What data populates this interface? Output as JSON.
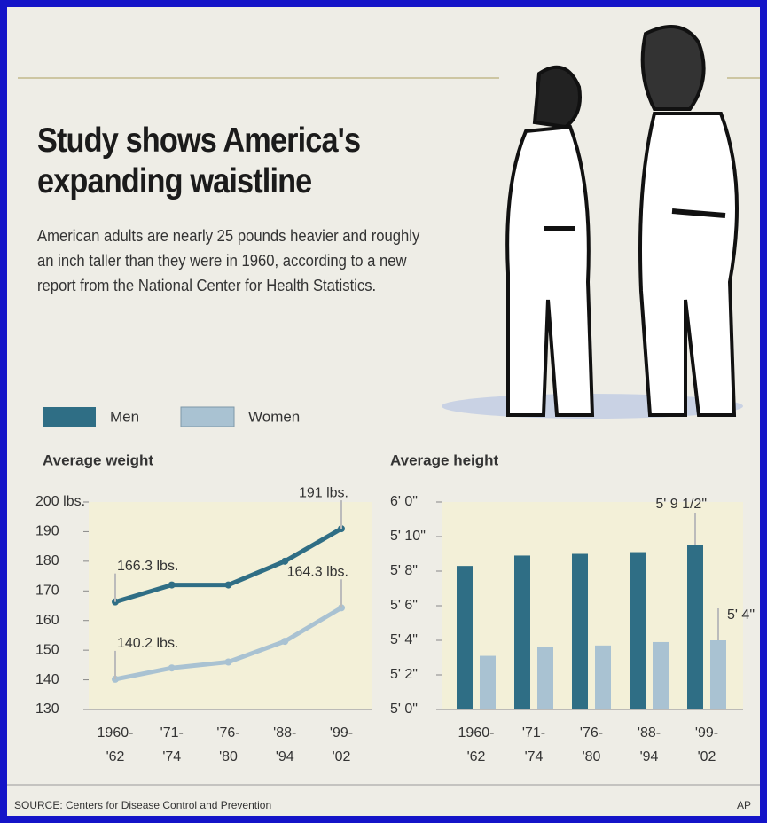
{
  "title": "Study shows America's expanding waistline",
  "description": "American adults are nearly 25 pounds heavier and roughly an inch taller than they were in 1960, according to a new report from the National Center for Health Statistics.",
  "source": "SOURCE: Centers for Disease Control and Prevention",
  "credit": "AP",
  "chart_data": [
    {
      "type": "line",
      "title": "Average weight",
      "categories": [
        "1960-'62",
        "'71-'74",
        "'76-'80",
        "'88-'94",
        "'99-'02"
      ],
      "series": [
        {
          "name": "Men",
          "color": "#2f6e85",
          "values": [
            166.3,
            172,
            172,
            180,
            191
          ],
          "value_labels": [
            "166.3 lbs.",
            null,
            null,
            null,
            "191 lbs."
          ]
        },
        {
          "name": "Women",
          "color": "#a9c2d2",
          "values": [
            140.2,
            144,
            146,
            153,
            164.3
          ],
          "value_labels": [
            "140.2 lbs.",
            null,
            null,
            null,
            "164.3 lbs."
          ]
        }
      ],
      "ylim": [
        130,
        200
      ],
      "yticks": [
        {
          "value": 200,
          "label": "200 lbs."
        },
        190,
        180,
        170,
        160,
        150,
        140,
        130
      ]
    },
    {
      "type": "bar",
      "title": "Average height",
      "categories": [
        "1960-'62",
        "'71-'74",
        "'76-'80",
        "'88-'94",
        "'99-'02"
      ],
      "series": [
        {
          "color": "#2f6e85",
          "values": [
            68.3,
            68.9,
            69,
            69.1,
            69.5
          ],
          "value_labels": [
            null,
            null,
            null,
            null,
            "5' 9 1/2\""
          ]
        },
        {
          "color": "#a9c2d2",
          "values": [
            63.1,
            63.6,
            63.7,
            63.9,
            64
          ],
          "value_labels": [
            null,
            null,
            null,
            null,
            "5' 4\""
          ]
        }
      ],
      "ylim": [
        60,
        72
      ],
      "yticks": [
        {
          "value": 72,
          "label": "6' 0\""
        },
        {
          "value": 70,
          "label": "5' 10\""
        },
        {
          "value": 68,
          "label": "5' 8\""
        },
        {
          "value": 66,
          "label": "5' 6\""
        },
        {
          "value": 64,
          "label": "5' 4\""
        },
        {
          "value": 62,
          "label": "5' 2\""
        },
        {
          "value": 60,
          "label": "5' 0\""
        }
      ]
    }
  ]
}
